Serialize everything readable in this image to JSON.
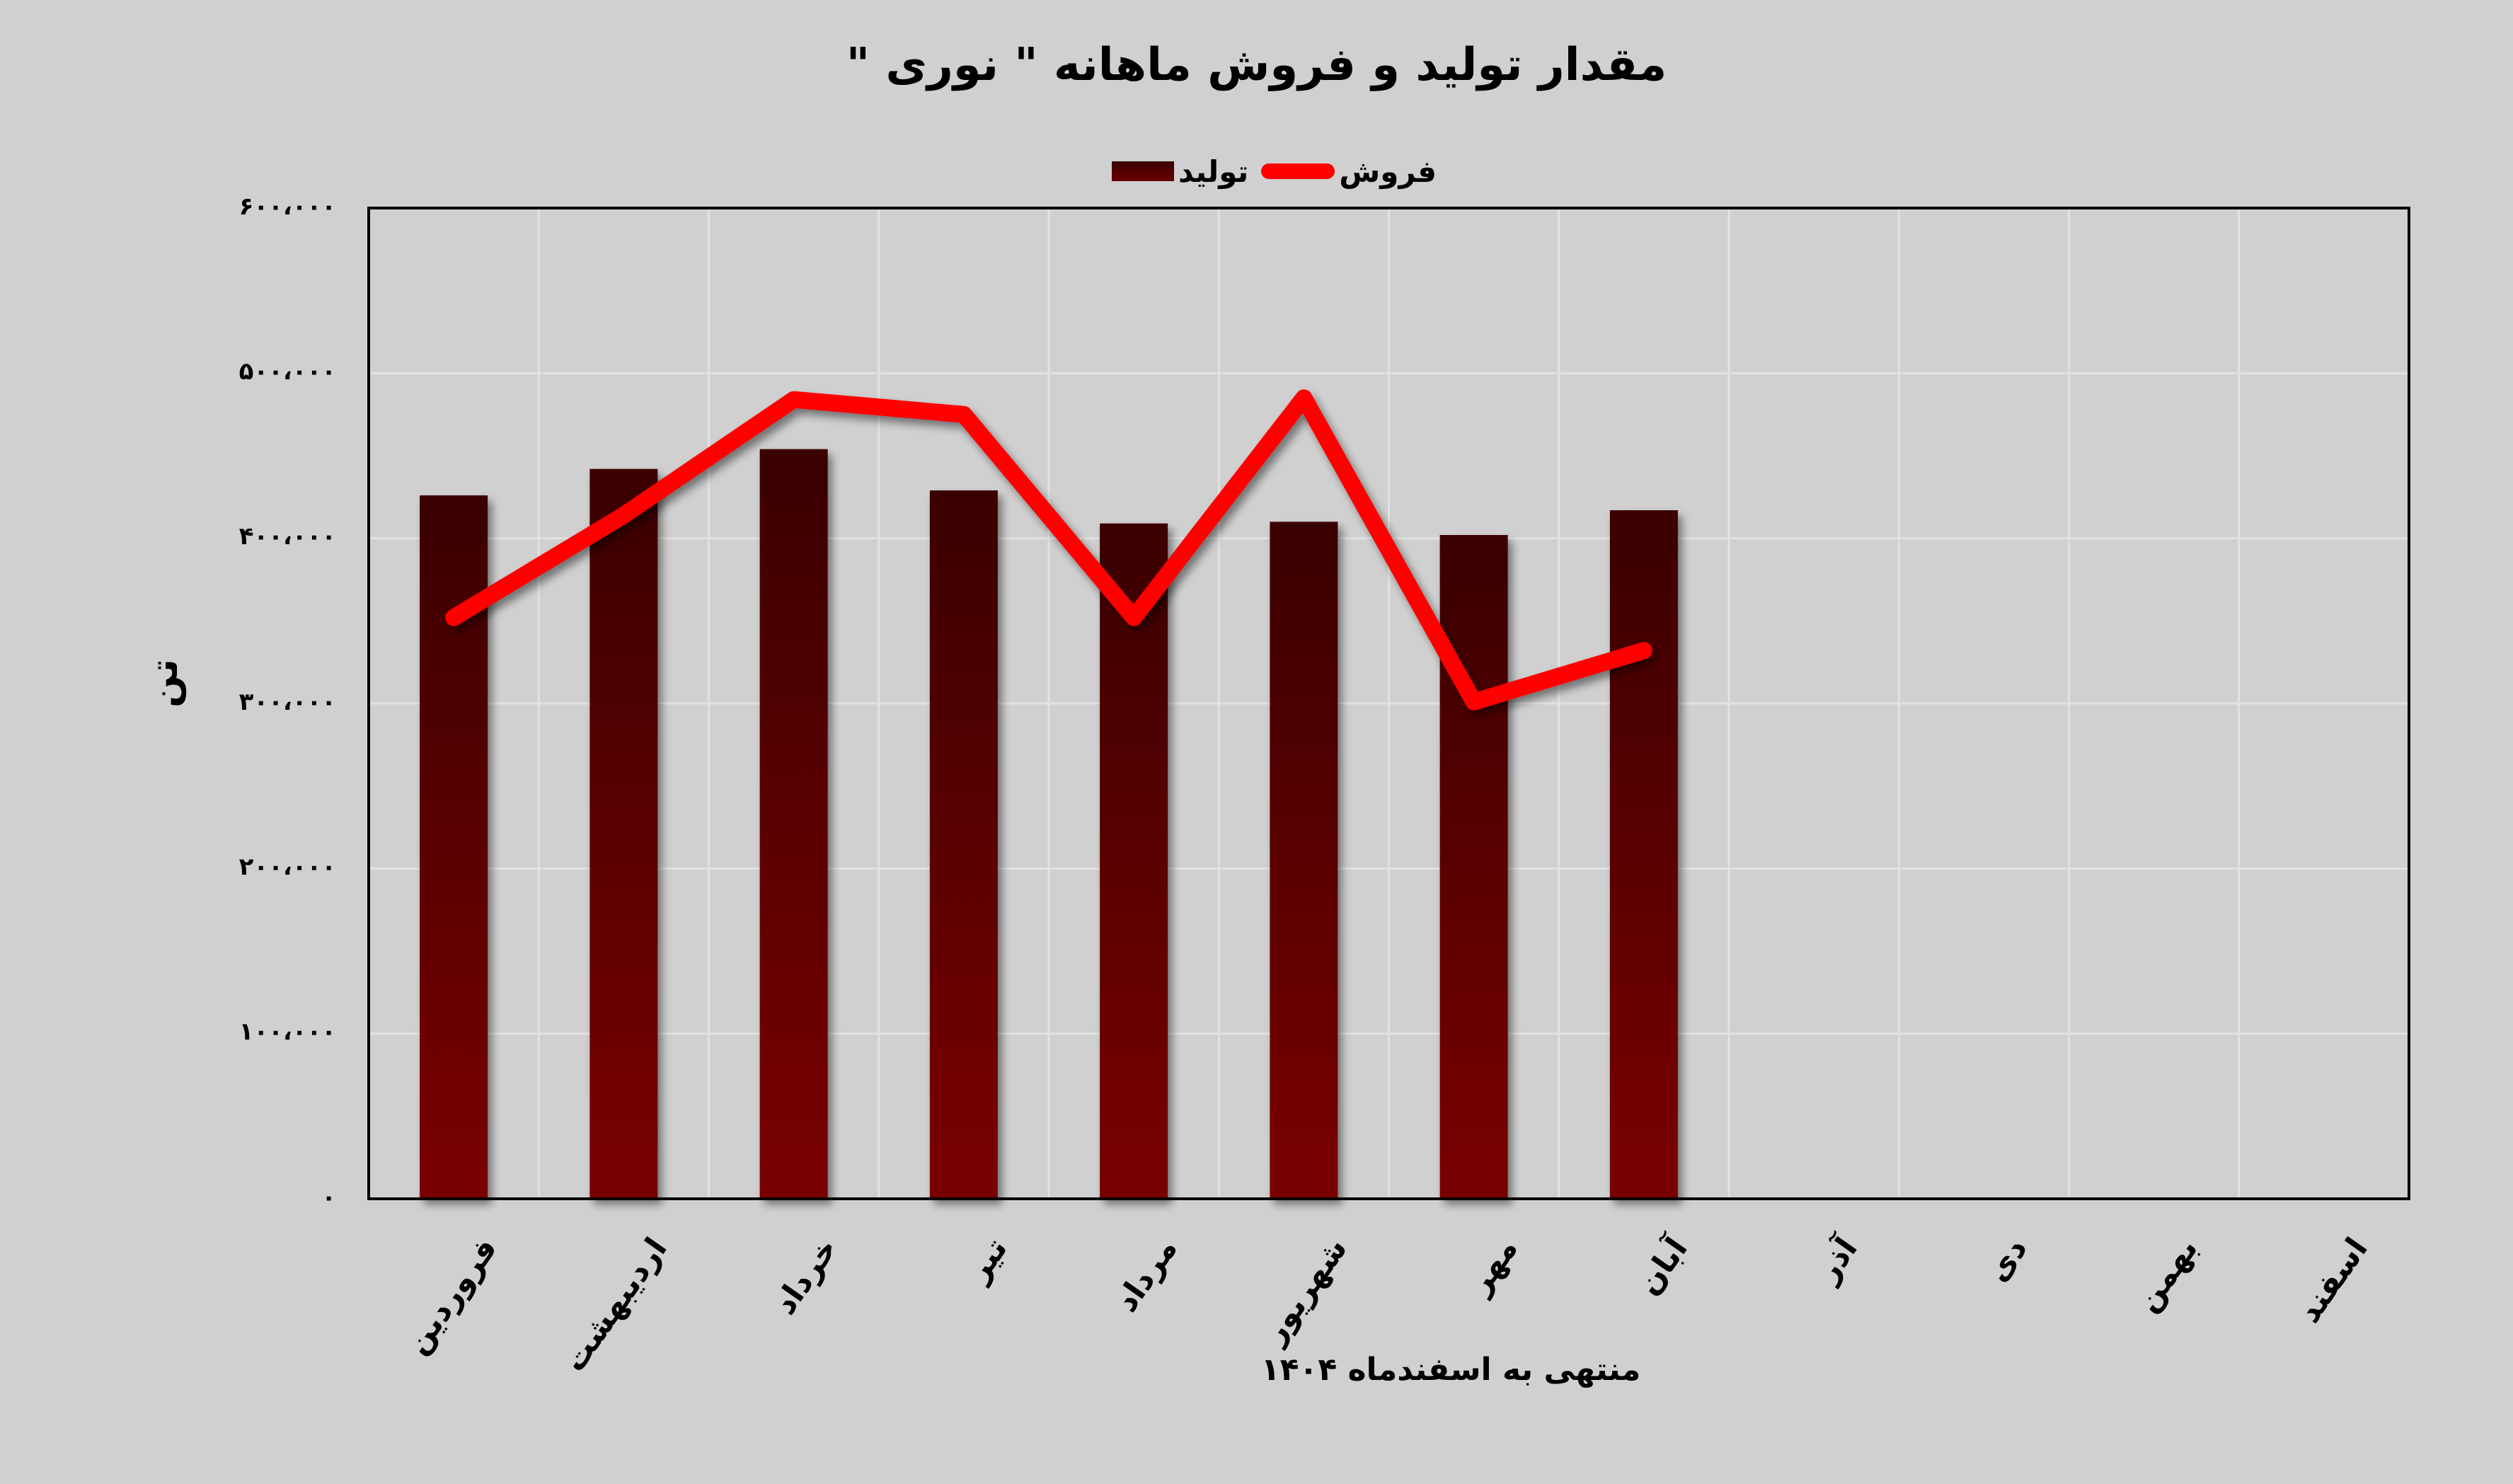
{
  "chart_data": {
    "type": "bar",
    "title": "مقدار تولید و فروش ماهانه \" نوری \"",
    "xlabel": "منتهی به اسفندماه ۱۴۰۴",
    "ylabel": "تن",
    "ylim": [
      0,
      600000
    ],
    "yticks": [
      "۶۰۰،۰۰۰",
      "۵۰۰،۰۰۰",
      "۴۰۰،۰۰۰",
      "۳۰۰،۰۰۰",
      "۲۰۰،۰۰۰",
      "۱۰۰،۰۰۰",
      "۰"
    ],
    "grid": true,
    "legend_position": "top",
    "categories": [
      "فروردین",
      "اردیبهشت",
      "خرداد",
      "تیر",
      "مرداد",
      "شهریور",
      "مهر",
      "آبان",
      "آذر",
      "دی",
      "بهمن",
      "اسفند"
    ],
    "series": [
      {
        "name": "تولید",
        "type": "bar",
        "color": "#5a0000",
        "values": [
          426000,
          442000,
          454000,
          429000,
          409000,
          410000,
          402000,
          417000,
          null,
          null,
          null,
          null
        ]
      },
      {
        "name": "فروش",
        "type": "line",
        "color": "#ff0000",
        "values": [
          352000,
          414000,
          484000,
          475000,
          352000,
          485000,
          301000,
          332000,
          null,
          null,
          null,
          null
        ]
      }
    ]
  },
  "title": "مقدار تولید و فروش ماهانه \" نوری \"",
  "legend": {
    "sales": "فروش",
    "production": "تولید"
  },
  "y_axis": {
    "title": "تن",
    "ticks": [
      "۶۰۰،۰۰۰",
      "۵۰۰،۰۰۰",
      "۴۰۰،۰۰۰",
      "۳۰۰،۰۰۰",
      "۲۰۰،۰۰۰",
      "۱۰۰،۰۰۰",
      "۰"
    ]
  },
  "x_axis": {
    "title": "منتهی به اسفندماه ۱۴۰۴",
    "ticks": [
      "فروردین",
      "اردیبهشت",
      "خرداد",
      "تیر",
      "مرداد",
      "شهریور",
      "مهر",
      "آبان",
      "آذر",
      "دی",
      "بهمن",
      "اسفند"
    ]
  },
  "colors": {
    "background": "#d0d0d0",
    "line": "#ff0000",
    "bar_top": "#3a0000",
    "bar_bottom": "#7a0000"
  }
}
